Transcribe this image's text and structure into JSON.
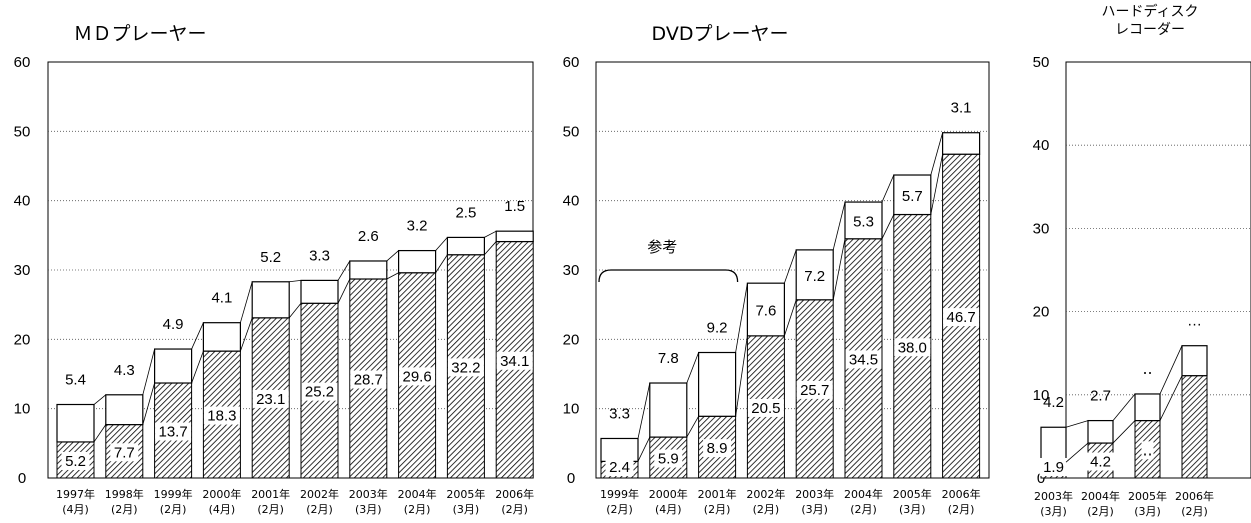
{
  "chart_data": [
    {
      "type": "bar",
      "stacked": true,
      "title": "ＭＤプレーヤー",
      "ylim": [
        0,
        60
      ],
      "yticks": [
        0,
        10,
        20,
        30,
        40,
        50,
        60
      ],
      "grid": "horizontal-dotted",
      "categories": [
        {
          "year": "1997年",
          "month": "(4月)"
        },
        {
          "year": "1998年",
          "month": "(2月)"
        },
        {
          "year": "1999年",
          "month": "(2月)"
        },
        {
          "year": "2000年",
          "month": "(4月)"
        },
        {
          "year": "2001年",
          "month": "(2月)"
        },
        {
          "year": "2002年",
          "month": "(2月)"
        },
        {
          "year": "2003年",
          "month": "(3月)"
        },
        {
          "year": "2004年",
          "month": "(2月)"
        },
        {
          "year": "2005年",
          "month": "(3月)"
        },
        {
          "year": "2006年",
          "month": "(2月)"
        }
      ],
      "series": [
        {
          "pattern": "hatched",
          "values": [
            5.2,
            7.7,
            13.7,
            18.3,
            23.1,
            25.2,
            28.7,
            29.6,
            32.2,
            34.1
          ],
          "labels": [
            "5.2",
            "7.7",
            "13.7",
            "18.3",
            "23.1",
            "25.2",
            "28.7",
            "29.6",
            "32.2",
            "34.1"
          ]
        },
        {
          "pattern": "white",
          "values": [
            5.4,
            4.3,
            4.9,
            4.1,
            5.2,
            3.3,
            2.6,
            3.2,
            2.5,
            1.5
          ],
          "labels": [
            "5.4",
            "4.3",
            "4.9",
            "4.1",
            "5.2",
            "3.3",
            "2.6",
            "3.2",
            "2.5",
            "1.5"
          ]
        }
      ]
    },
    {
      "type": "bar",
      "stacked": true,
      "title": "DVDプレーヤー",
      "ylim": [
        0,
        60
      ],
      "yticks": [
        0,
        10,
        20,
        30,
        40,
        50,
        60
      ],
      "grid": "horizontal-dotted",
      "annotation": "参考",
      "annotation_span": [
        "1999年",
        "2001年"
      ],
      "categories": [
        {
          "year": "1999年",
          "month": "(2月)"
        },
        {
          "year": "2000年",
          "month": "(4月)"
        },
        {
          "year": "2001年",
          "month": "(2月)"
        },
        {
          "year": "2002年",
          "month": "(2月)"
        },
        {
          "year": "2003年",
          "month": "(3月)"
        },
        {
          "year": "2004年",
          "month": "(2月)"
        },
        {
          "year": "2005年",
          "month": "(3月)"
        },
        {
          "year": "2006年",
          "month": "(2月)"
        }
      ],
      "series": [
        {
          "pattern": "hatched",
          "values": [
            2.4,
            5.9,
            8.9,
            20.5,
            25.7,
            34.5,
            38.0,
            46.7
          ],
          "labels": [
            "2.4",
            "5.9",
            "8.9",
            "20.5",
            "25.7",
            "34.5",
            "38.0",
            "46.7"
          ]
        },
        {
          "pattern": "white",
          "values": [
            3.3,
            7.8,
            9.2,
            7.6,
            7.2,
            5.3,
            5.7,
            3.1
          ],
          "labels": [
            "3.3",
            "7.8",
            "9.2",
            "7.6",
            "7.2",
            "5.3",
            "5.7",
            "3.1"
          ]
        }
      ]
    },
    {
      "type": "bar",
      "stacked": true,
      "title": [
        "ハードディスク",
        "レコーダー"
      ],
      "ylim": [
        0,
        50
      ],
      "yticks": [
        0,
        10,
        20,
        30,
        40,
        50
      ],
      "grid": "horizontal-dotted",
      "categories": [
        {
          "year": "2003年",
          "month": "(3月)"
        },
        {
          "year": "2004年",
          "month": "(2月)"
        },
        {
          "year": "2005年",
          "month": "(3月)"
        },
        {
          "year": "2006年",
          "month": "(2月)"
        }
      ],
      "series": [
        {
          "pattern": "hatched",
          "values": [
            1.9,
            4.2,
            6.9,
            12.3
          ],
          "labels": [
            "1.9",
            "4.2",
            "‥",
            ""
          ]
        },
        {
          "pattern": "white",
          "values": [
            4.2,
            2.7,
            3.2,
            3.6
          ],
          "labels": [
            "4.2",
            "2.7",
            "‥",
            "…"
          ]
        }
      ]
    }
  ]
}
